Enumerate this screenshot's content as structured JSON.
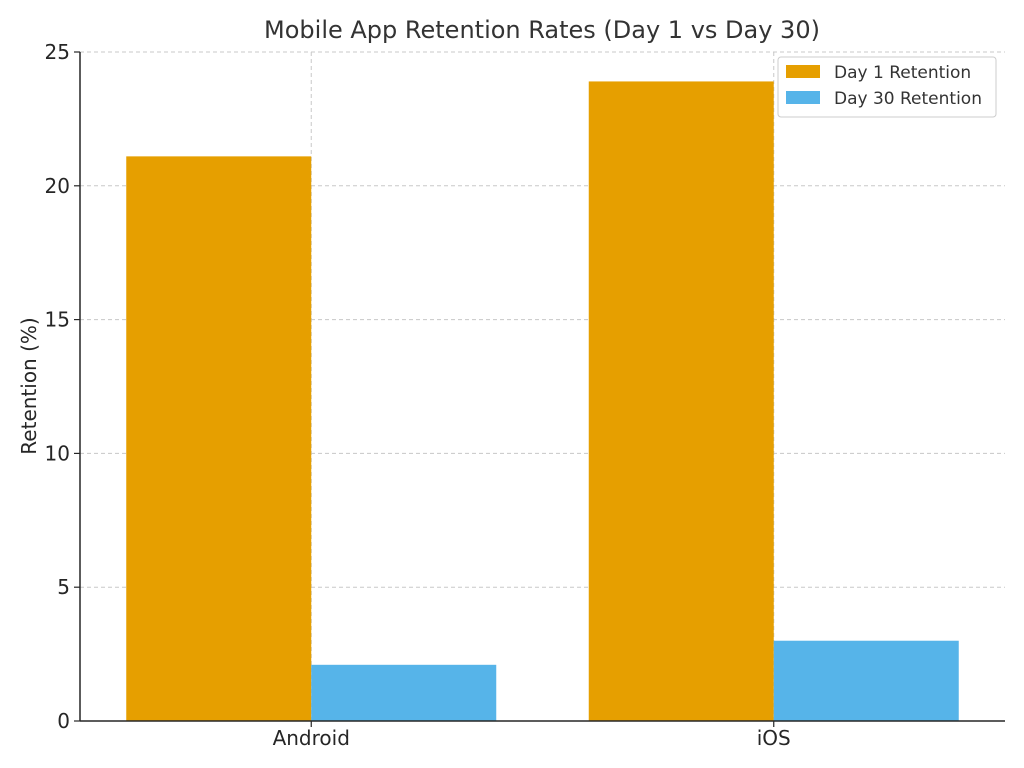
{
  "chart_data": {
    "type": "bar",
    "title": "Mobile App Retention Rates (Day 1 vs Day 30)",
    "xlabel": "",
    "ylabel": "Retention (%)",
    "categories": [
      "Android",
      "iOS"
    ],
    "series": [
      {
        "name": "Day 1 Retention",
        "values": [
          21.1,
          23.9
        ],
        "color": "#E69F00"
      },
      {
        "name": "Day 30 Retention",
        "values": [
          2.1,
          3.0
        ],
        "color": "#56B4E9"
      }
    ],
    "ylim": [
      0,
      25
    ],
    "yticks": [
      "0",
      "5",
      "10",
      "15",
      "20",
      "25"
    ],
    "grid": true,
    "legend_position": "top-right"
  }
}
